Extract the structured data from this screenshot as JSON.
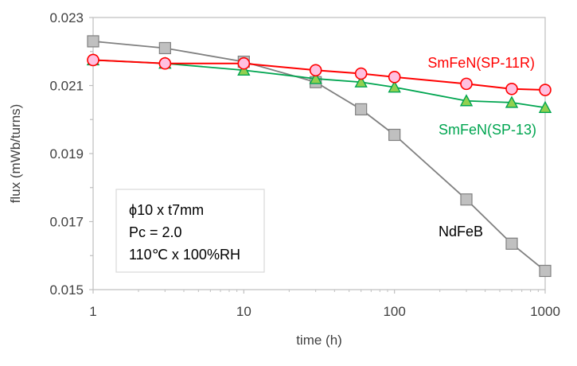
{
  "chart_data": {
    "type": "line",
    "title": "",
    "xlabel": "time (h)",
    "ylabel": "flux (mWb/turns)",
    "x_scale": "log",
    "xlim": [
      1,
      1000
    ],
    "ylim": [
      0.015,
      0.023
    ],
    "x_tick_labels": [
      "1",
      "10",
      "100",
      "1000"
    ],
    "x_tick_values": [
      1,
      10,
      100,
      1000
    ],
    "y_tick_labels": [
      "0.015",
      "0.017",
      "0.019",
      "0.021",
      "0.023"
    ],
    "y_tick_values": [
      0.015,
      0.017,
      0.019,
      0.021,
      0.023
    ],
    "grid": false,
    "series": [
      {
        "name": "NdFeB",
        "color": "#808080",
        "marker": "square",
        "marker_fill": "#c0c0c0",
        "x": [
          1,
          3,
          10,
          30,
          60,
          100,
          300,
          600,
          1000
        ],
        "y": [
          0.0223,
          0.0221,
          0.0217,
          0.0211,
          0.0203,
          0.01955,
          0.01765,
          0.01635,
          0.01555
        ]
      },
      {
        "name": "SmFeN(SP-13)",
        "color": "#00a550",
        "marker": "triangle",
        "marker_fill": "#92d050",
        "x": [
          1,
          3,
          10,
          30,
          60,
          100,
          300,
          600,
          1000
        ],
        "y": [
          0.02175,
          0.02165,
          0.02145,
          0.0212,
          0.0211,
          0.02095,
          0.02055,
          0.0205,
          0.02035
        ]
      },
      {
        "name": "SmFeN(SP-11R)",
        "color": "#ff0000",
        "marker": "circle",
        "marker_fill": "#ffc0e0",
        "x": [
          1,
          3,
          10,
          30,
          60,
          100,
          300,
          600,
          1000
        ],
        "y": [
          0.02175,
          0.02165,
          0.02165,
          0.02145,
          0.02135,
          0.02125,
          0.02105,
          0.0209,
          0.02087
        ]
      }
    ],
    "annotation": {
      "lines": [
        "ϕ10 x t7mm",
        "Pc = 2.0",
        "110℃ x 100%RH"
      ]
    }
  }
}
